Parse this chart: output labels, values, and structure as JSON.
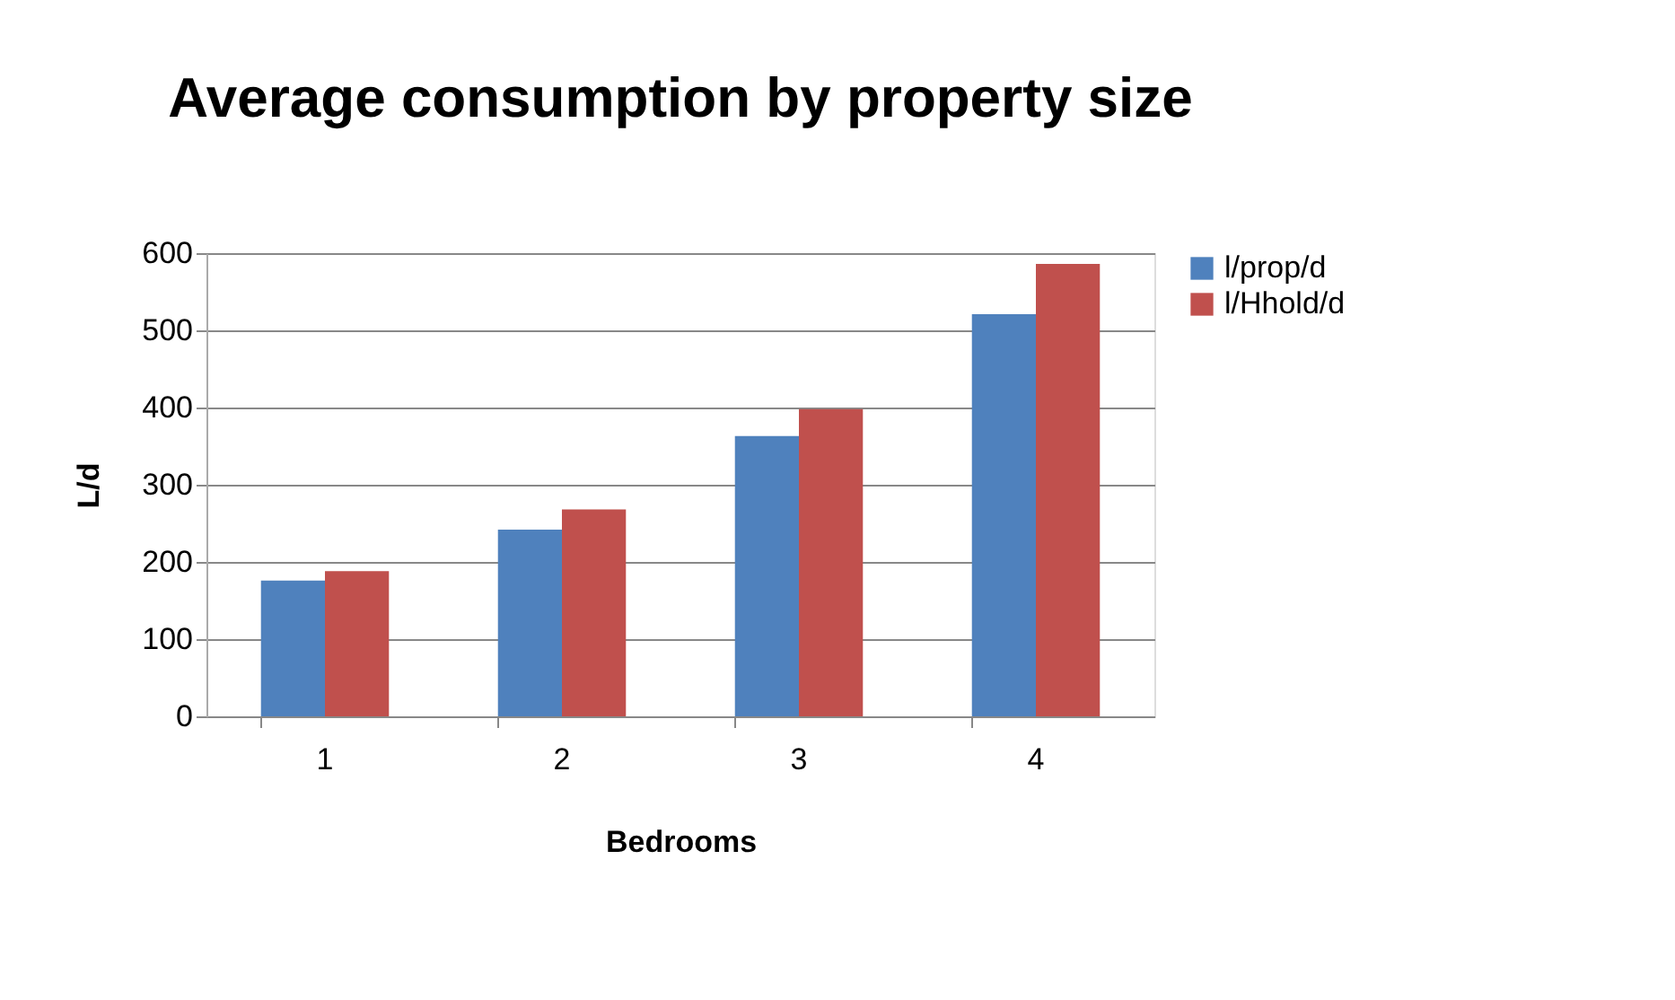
{
  "chart_data": {
    "type": "bar",
    "title": "Average consumption by property size",
    "xlabel": "Bedrooms",
    "ylabel": "L/d",
    "categories": [
      "1",
      "2",
      "3",
      "4"
    ],
    "series": [
      {
        "name": "l/prop/d",
        "color": "#4f81bd",
        "values": [
          176,
          242,
          363,
          521
        ]
      },
      {
        "name": "l/Hhold/d",
        "color": "#c0504d",
        "values": [
          188,
          268,
          398,
          586
        ]
      }
    ],
    "ylim": [
      0,
      600
    ],
    "yticks": [
      0,
      100,
      200,
      300,
      400,
      500,
      600
    ],
    "grid": "y",
    "legend": "right"
  }
}
